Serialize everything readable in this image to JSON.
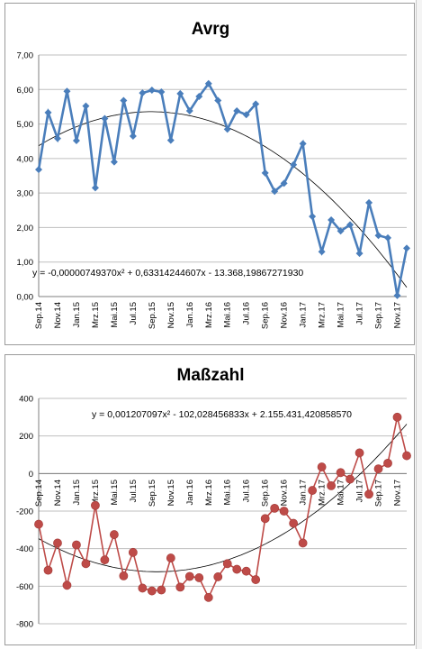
{
  "chart_data": [
    {
      "type": "line",
      "title": "Avrg",
      "x": [
        "Sep.14",
        "Okt.14",
        "Nov.14",
        "Dez.14",
        "Jan.15",
        "Feb.15",
        "Mrz.15",
        "Apr.15",
        "Mai.15",
        "Jun.15",
        "Jul.15",
        "Aug.15",
        "Sep.15",
        "Okt.15",
        "Nov.15",
        "Dez.15",
        "Jan.16",
        "Feb.16",
        "Mrz.16",
        "Apr.16",
        "Mai.16",
        "Jun.16",
        "Jul.16",
        "Aug.16",
        "Sep.16",
        "Okt.16",
        "Nov.16",
        "Dez.16",
        "Jan.17",
        "Feb.17",
        "Mrz.17",
        "Apr.17",
        "Mai.17",
        "Jun.17",
        "Jul.17",
        "Aug.17",
        "Sep.17",
        "Okt.17",
        "Nov.17",
        "Dez.17"
      ],
      "xticklabels": [
        "Sep.14",
        "Nov.14",
        "Jan.15",
        "Mrz.15",
        "Mai.15",
        "Jul.15",
        "Sep.15",
        "Nov.15",
        "Jan.16",
        "Mrz.16",
        "Mai.16",
        "Jul.16",
        "Sep.16",
        "Nov.16",
        "Jan.17",
        "Mrz.17",
        "Mai.17",
        "Jul.17",
        "Sep.17",
        "Nov.17"
      ],
      "series": [
        {
          "values": [
            3.68,
            5.33,
            4.58,
            5.95,
            4.52,
            5.52,
            3.15,
            5.16,
            3.9,
            5.68,
            4.65,
            5.9,
            5.98,
            5.93,
            4.53,
            5.88,
            5.38,
            5.8,
            6.17,
            5.68,
            4.85,
            5.38,
            5.27,
            5.58,
            3.58,
            3.05,
            3.28,
            3.82,
            4.43,
            2.32,
            1.3,
            2.22,
            1.9,
            2.08,
            1.25,
            2.72,
            1.77,
            1.7,
            0.03,
            1.4
          ],
          "color": "#4a7ebb"
        }
      ],
      "trendline": {
        "type": "polynomial",
        "order": 2,
        "equation": "y = -0,00000749370x²  + 0,63314244607x  - 13.368,19867271930"
      },
      "yticklabels": [
        "0,00",
        "1,00",
        "2,00",
        "3,00",
        "4,00",
        "5,00",
        "6,00",
        "7,00"
      ],
      "ylim": [
        0,
        7
      ],
      "grid": true
    },
    {
      "type": "line",
      "title": "Maßzahl",
      "x": [
        "Sep.14",
        "Okt.14",
        "Nov.14",
        "Dez.14",
        "Jan.15",
        "Feb.15",
        "Mrz.15",
        "Apr.15",
        "Mai.15",
        "Jun.15",
        "Jul.15",
        "Aug.15",
        "Sep.15",
        "Okt.15",
        "Nov.15",
        "Dez.15",
        "Jan.16",
        "Feb.16",
        "Mrz.16",
        "Apr.16",
        "Mai.16",
        "Jun.16",
        "Jul.16",
        "Aug.16",
        "Sep.16",
        "Okt.16",
        "Nov.16",
        "Dez.16",
        "Jan.17",
        "Feb.17",
        "Mrz.17",
        "Apr.17",
        "Mai.17",
        "Jun.17",
        "Jul.17",
        "Aug.17",
        "Sep.17",
        "Okt.17",
        "Nov.17",
        "Dez.17"
      ],
      "xticklabels": [
        "Sep.14",
        "Nov.14",
        "Jan.15",
        "Mrz.15",
        "Mai.15",
        "Jul.15",
        "Sep.15",
        "Nov.15",
        "Jan.16",
        "Mrz.16",
        "Mai.16",
        "Jul.16",
        "Sep.16",
        "Nov.16",
        "Jan.17",
        "Mrz.17",
        "Mai.17",
        "Jul.17",
        "Sep.17",
        "Nov.17"
      ],
      "series": [
        {
          "values": [
            -270,
            -515,
            -370,
            -595,
            -380,
            -480,
            -170,
            -460,
            -325,
            -545,
            -420,
            -610,
            -625,
            -620,
            -450,
            -605,
            -548,
            -555,
            -660,
            -550,
            -480,
            -510,
            -520,
            -565,
            -240,
            -185,
            -200,
            -265,
            -370,
            -90,
            35,
            -65,
            5,
            -30,
            110,
            -110,
            25,
            55,
            300,
            95
          ],
          "color": "#be4b48"
        }
      ],
      "trendline": {
        "type": "polynomial",
        "order": 2,
        "equation": "y = 0,001207097x²  - 102,028456833x  + 2.155.431,420858570"
      },
      "yticklabels": [
        "-800",
        "-600",
        "-400",
        "-200",
        "0",
        "200",
        "400"
      ],
      "ylim": [
        -800,
        400
      ],
      "grid": true
    }
  ]
}
